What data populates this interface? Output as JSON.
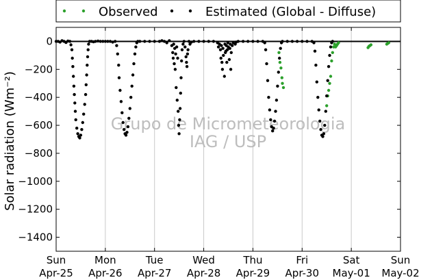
{
  "chart_data": {
    "type": "scatter",
    "ylabel": "Solar radiation (Wm⁻²)",
    "xlabel": "",
    "title": "",
    "ylim": [
      -1500,
      100
    ],
    "xlim": [
      0,
      7
    ],
    "ytick_values": [
      0,
      -200,
      -400,
      -600,
      -800,
      -1000,
      -1200,
      -1400
    ],
    "ytick_labels": [
      "0",
      "−200",
      "−400",
      "−600",
      "−800",
      "−1000",
      "−1200",
      "−1400"
    ],
    "xtick_values": [
      0,
      1,
      2,
      3,
      4,
      5,
      6,
      7
    ],
    "xtick_labels": [
      {
        "day": "Sun",
        "date": "Apr-25"
      },
      {
        "day": "Mon",
        "date": "Apr-26"
      },
      {
        "day": "Tue",
        "date": "Apr-27"
      },
      {
        "day": "Wed",
        "date": "Apr-28"
      },
      {
        "day": "Thu",
        "date": "Apr-29"
      },
      {
        "day": "Fri",
        "date": "Apr-30"
      },
      {
        "day": "Sat",
        "date": "May-01"
      },
      {
        "day": "Sun",
        "date": "May-02"
      }
    ],
    "grid": "vertical",
    "legend_placement": "top (outside)",
    "watermark": [
      "Grupo de Micrometeorologia",
      "IAG / USP"
    ],
    "series": [
      {
        "name": "Observed",
        "color": "#2ca02c",
        "points": [
          [
            4.53,
            -80
          ],
          [
            4.55,
            -150
          ],
          [
            4.57,
            -190
          ],
          [
            4.59,
            -260
          ],
          [
            4.6,
            -300
          ],
          [
            4.62,
            -330
          ],
          [
            5.5,
            -460
          ],
          [
            5.52,
            -390
          ],
          [
            5.54,
            -350
          ],
          [
            5.56,
            -300
          ],
          [
            5.58,
            -250
          ],
          [
            5.6,
            -140
          ],
          [
            5.62,
            -80
          ],
          [
            5.64,
            -40
          ],
          [
            5.66,
            -20
          ],
          [
            5.68,
            -40
          ],
          [
            5.7,
            -30
          ],
          [
            5.72,
            -20
          ],
          [
            5.74,
            -10
          ],
          [
            6.34,
            -45
          ],
          [
            6.36,
            -35
          ],
          [
            6.38,
            -30
          ],
          [
            6.4,
            -25
          ],
          [
            6.72,
            -20
          ],
          [
            6.74,
            -15
          ],
          [
            6.76,
            -10
          ]
        ]
      },
      {
        "name": "Estimated (Global - Diffuse)",
        "color": "#000000",
        "points": [
          [
            0.0,
            0
          ],
          [
            0.04,
            0
          ],
          [
            0.08,
            -5
          ],
          [
            0.12,
            5
          ],
          [
            0.16,
            0
          ],
          [
            0.2,
            -8
          ],
          [
            0.24,
            2
          ],
          [
            0.28,
            0
          ],
          [
            0.3,
            -25
          ],
          [
            0.32,
            -60
          ],
          [
            0.33,
            -120
          ],
          [
            0.34,
            -180
          ],
          [
            0.35,
            -250
          ],
          [
            0.36,
            -320
          ],
          [
            0.37,
            -380
          ],
          [
            0.38,
            -440
          ],
          [
            0.39,
            -500
          ],
          [
            0.4,
            -560
          ],
          [
            0.42,
            -620
          ],
          [
            0.44,
            -660
          ],
          [
            0.46,
            -680
          ],
          [
            0.48,
            -690
          ],
          [
            0.5,
            -670
          ],
          [
            0.52,
            -630
          ],
          [
            0.54,
            -580
          ],
          [
            0.56,
            -520
          ],
          [
            0.58,
            -450
          ],
          [
            0.6,
            -380
          ],
          [
            0.61,
            -310
          ],
          [
            0.62,
            -240
          ],
          [
            0.63,
            -170
          ],
          [
            0.64,
            -110
          ],
          [
            0.65,
            -60
          ],
          [
            0.66,
            -20
          ],
          [
            0.68,
            0
          ],
          [
            0.72,
            0
          ],
          [
            0.76,
            -3
          ],
          [
            0.8,
            0
          ],
          [
            0.85,
            2
          ],
          [
            0.9,
            0
          ],
          [
            0.95,
            0
          ],
          [
            1.0,
            0
          ],
          [
            1.05,
            0
          ],
          [
            1.1,
            0
          ],
          [
            1.15,
            -5
          ],
          [
            1.2,
            0
          ],
          [
            1.23,
            -30
          ],
          [
            1.25,
            -90
          ],
          [
            1.27,
            -170
          ],
          [
            1.28,
            -260
          ],
          [
            1.3,
            -350
          ],
          [
            1.32,
            -430
          ],
          [
            1.34,
            -510
          ],
          [
            1.36,
            -580
          ],
          [
            1.38,
            -630
          ],
          [
            1.4,
            -660
          ],
          [
            1.42,
            -670
          ],
          [
            1.44,
            -650
          ],
          [
            1.46,
            -610
          ],
          [
            1.48,
            -550
          ],
          [
            1.5,
            -480
          ],
          [
            1.52,
            -400
          ],
          [
            1.54,
            -320
          ],
          [
            1.56,
            -240
          ],
          [
            1.58,
            -160
          ],
          [
            1.6,
            -90
          ],
          [
            1.62,
            -40
          ],
          [
            1.64,
            -10
          ],
          [
            1.66,
            0
          ],
          [
            1.7,
            0
          ],
          [
            1.8,
            0
          ],
          [
            1.9,
            0
          ],
          [
            2.0,
            0
          ],
          [
            2.1,
            0
          ],
          [
            2.15,
            5
          ],
          [
            2.2,
            0
          ],
          [
            2.25,
            -10
          ],
          [
            2.3,
            5
          ],
          [
            2.35,
            -30
          ],
          [
            2.37,
            -80
          ],
          [
            2.38,
            -120
          ],
          [
            2.39,
            -20
          ],
          [
            2.4,
            -160
          ],
          [
            2.41,
            -50
          ],
          [
            2.42,
            -200
          ],
          [
            2.43,
            -90
          ],
          [
            2.44,
            -330
          ],
          [
            2.45,
            -40
          ],
          [
            2.46,
            -420
          ],
          [
            2.47,
            -120
          ],
          [
            2.48,
            -500
          ],
          [
            2.49,
            -600
          ],
          [
            2.5,
            -660
          ],
          [
            2.51,
            -560
          ],
          [
            2.52,
            -480
          ],
          [
            2.53,
            -370
          ],
          [
            2.54,
            -260
          ],
          [
            2.55,
            -140
          ],
          [
            2.56,
            -60
          ],
          [
            2.58,
            -20
          ],
          [
            2.6,
            0
          ],
          [
            2.62,
            -40
          ],
          [
            2.64,
            -110
          ],
          [
            2.65,
            -150
          ],
          [
            2.66,
            -180
          ],
          [
            2.67,
            -90
          ],
          [
            2.68,
            -60
          ],
          [
            2.7,
            0
          ],
          [
            2.72,
            -20
          ],
          [
            2.75,
            -5
          ],
          [
            2.8,
            0
          ],
          [
            2.9,
            0
          ],
          [
            3.0,
            0
          ],
          [
            3.1,
            0
          ],
          [
            3.2,
            0
          ],
          [
            3.28,
            -10
          ],
          [
            3.3,
            -40
          ],
          [
            3.32,
            -20
          ],
          [
            3.34,
            -60
          ],
          [
            3.35,
            -120
          ],
          [
            3.36,
            -30
          ],
          [
            3.37,
            -150
          ],
          [
            3.38,
            -200
          ],
          [
            3.39,
            -50
          ],
          [
            3.4,
            -100
          ],
          [
            3.42,
            -250
          ],
          [
            3.43,
            -20
          ],
          [
            3.44,
            -80
          ],
          [
            3.45,
            -70
          ],
          [
            3.46,
            -30
          ],
          [
            3.47,
            -150
          ],
          [
            3.48,
            -60
          ],
          [
            3.49,
            -10
          ],
          [
            3.5,
            -40
          ],
          [
            3.52,
            -130
          ],
          [
            3.53,
            -50
          ],
          [
            3.54,
            -20
          ],
          [
            3.55,
            -200
          ],
          [
            3.56,
            -80
          ],
          [
            3.58,
            -30
          ],
          [
            3.6,
            -10
          ],
          [
            3.64,
            -20
          ],
          [
            3.66,
            -5
          ],
          [
            3.7,
            0
          ],
          [
            3.8,
            0
          ],
          [
            3.9,
            0
          ],
          [
            4.0,
            0
          ],
          [
            4.1,
            0
          ],
          [
            4.2,
            0
          ],
          [
            4.24,
            -10
          ],
          [
            4.26,
            -60
          ],
          [
            4.28,
            -160
          ],
          [
            4.3,
            -280
          ],
          [
            4.32,
            -400
          ],
          [
            4.34,
            -490
          ],
          [
            4.36,
            -560
          ],
          [
            4.38,
            -610
          ],
          [
            4.4,
            -640
          ],
          [
            4.42,
            -620
          ],
          [
            4.44,
            -570
          ],
          [
            4.46,
            -500
          ],
          [
            4.48,
            -420
          ],
          [
            4.5,
            -320
          ],
          [
            4.52,
            -220
          ],
          [
            4.54,
            -120
          ],
          [
            4.56,
            -50
          ],
          [
            4.58,
            -10
          ],
          [
            4.6,
            0
          ],
          [
            4.7,
            0
          ],
          [
            4.8,
            0
          ],
          [
            4.9,
            0
          ],
          [
            5.0,
            0
          ],
          [
            5.1,
            0
          ],
          [
            5.2,
            0
          ],
          [
            5.24,
            -10
          ],
          [
            5.26,
            -70
          ],
          [
            5.28,
            -170
          ],
          [
            5.3,
            -290
          ],
          [
            5.32,
            -400
          ],
          [
            5.34,
            -490
          ],
          [
            5.36,
            -570
          ],
          [
            5.38,
            -630
          ],
          [
            5.4,
            -670
          ],
          [
            5.42,
            -680
          ],
          [
            5.44,
            -660
          ],
          [
            5.46,
            -600
          ],
          [
            5.48,
            -500
          ],
          [
            5.5,
            -390
          ],
          [
            5.52,
            -280
          ],
          [
            5.54,
            -180
          ],
          [
            5.56,
            -100
          ],
          [
            5.58,
            -40
          ],
          [
            5.6,
            -10
          ],
          [
            5.62,
            0
          ]
        ]
      }
    ]
  }
}
